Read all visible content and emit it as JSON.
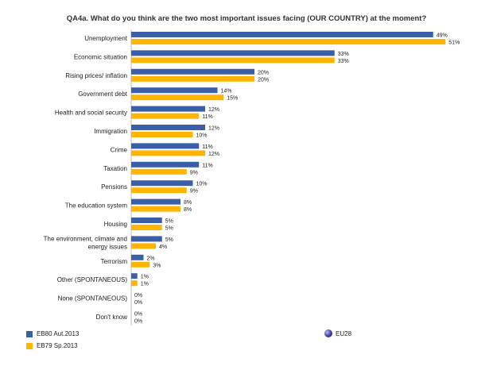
{
  "chart_data": {
    "type": "bar",
    "orientation": "horizontal",
    "title": "QA4a. What do you think are the two most important issues facing (OUR COUNTRY) at the moment?",
    "categories": [
      "Unemployment",
      "Economic situation",
      "Rising prices/ inflation",
      "Government debt",
      "Health and social security",
      "Immigration",
      "Crime",
      "Taxation",
      "Pensions",
      "The education system",
      "Housing",
      "The environment, climate and energy issues",
      "Terrorism",
      "Other (SPONTANEOUS)",
      "None (SPONTANEOUS)",
      "Don't know"
    ],
    "series": [
      {
        "name": "EB80 Aut.2013",
        "color": "#3a5fa8",
        "values": [
          49,
          33,
          20,
          14,
          12,
          12,
          11,
          11,
          10,
          8,
          5,
          5,
          2,
          1,
          0,
          0
        ]
      },
      {
        "name": "EB79 Sp.2013",
        "color": "#ffb500",
        "values": [
          51,
          33,
          20,
          15,
          11,
          10,
          12,
          9,
          9,
          8,
          5,
          4,
          3,
          1,
          0,
          0
        ]
      }
    ],
    "value_suffix": "%",
    "xlim": [
      0,
      55
    ],
    "legend_extra": "EU28"
  }
}
